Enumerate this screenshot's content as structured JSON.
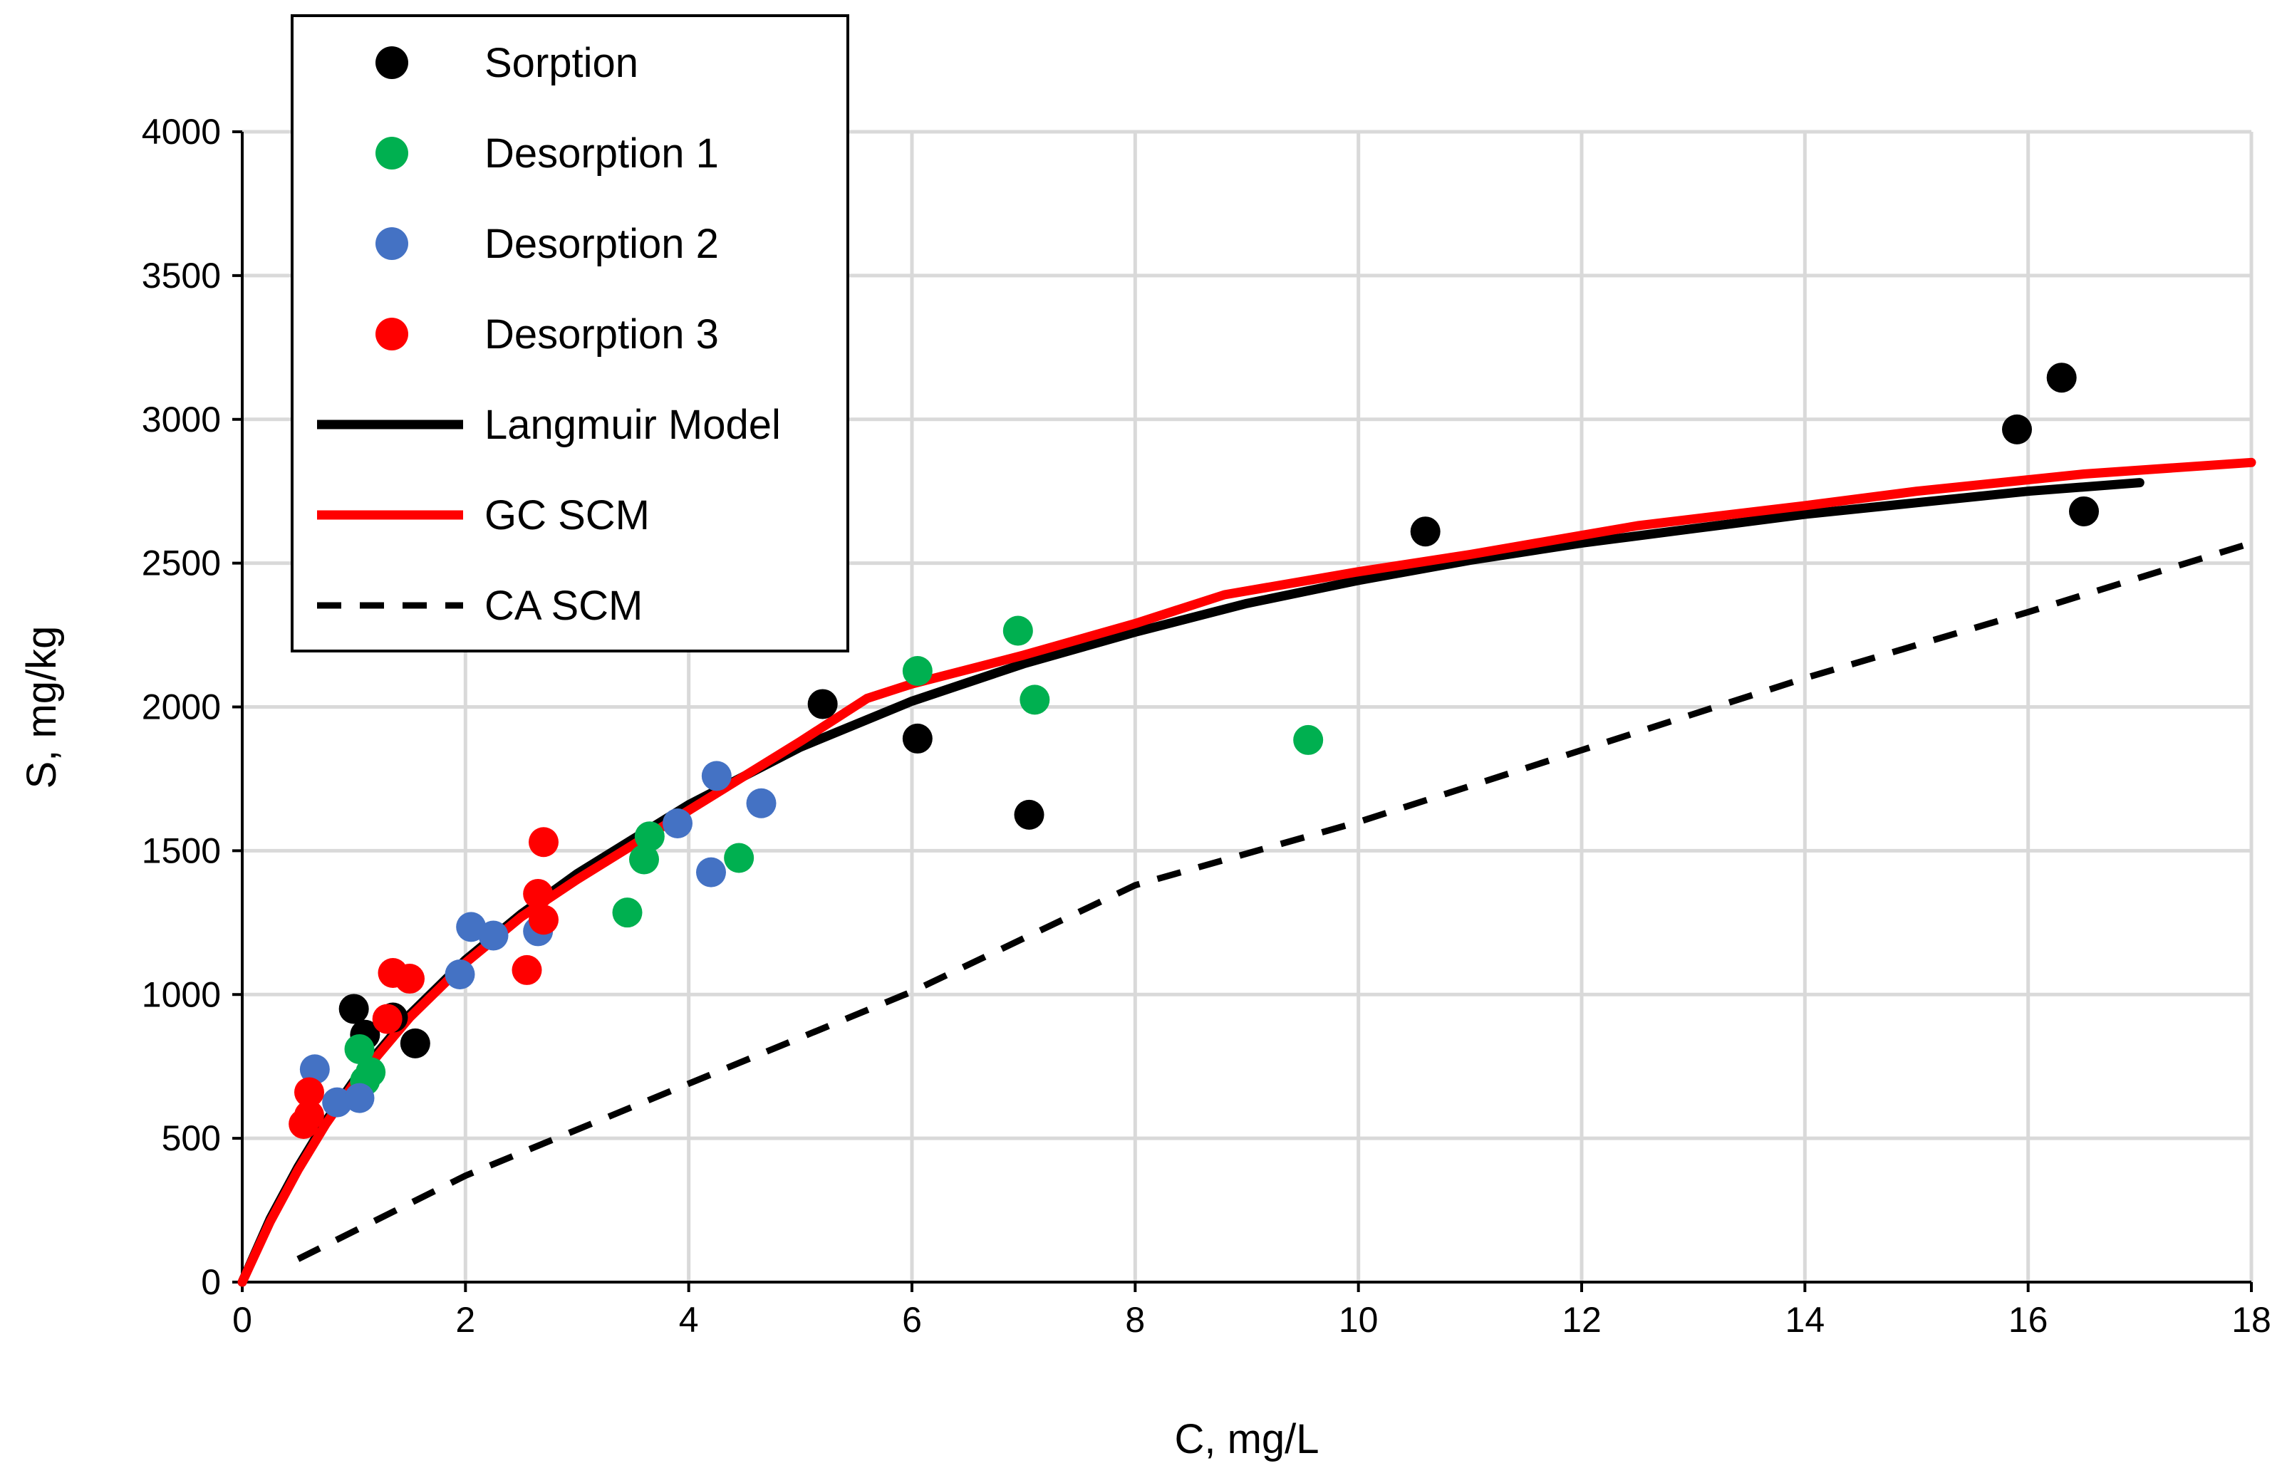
{
  "chart_data": {
    "type": "scatter",
    "title": "",
    "xlabel": "C, mg/L",
    "ylabel": "S, mg/kg",
    "xlim": [
      0,
      18
    ],
    "ylim": [
      0,
      4000
    ],
    "xticks": [
      0,
      2,
      4,
      6,
      8,
      10,
      12,
      14,
      16,
      18
    ],
    "yticks": [
      0,
      500,
      1000,
      1500,
      2000,
      2500,
      3000,
      3500,
      4000
    ],
    "grid": true,
    "legend_position": "top-left",
    "series": [
      {
        "name": "Sorption",
        "kind": "points",
        "color": "#000000",
        "points": [
          [
            1.0,
            950
          ],
          [
            1.1,
            860
          ],
          [
            1.35,
            920
          ],
          [
            1.55,
            830
          ],
          [
            5.2,
            2010
          ],
          [
            6.05,
            1890
          ],
          [
            7.05,
            1625
          ],
          [
            10.6,
            2610
          ],
          [
            15.9,
            2965
          ],
          [
            16.3,
            3145
          ],
          [
            16.5,
            2680
          ]
        ]
      },
      {
        "name": "Desorption 1",
        "kind": "points",
        "color": "#00b050",
        "points": [
          [
            1.05,
            810
          ],
          [
            1.15,
            730
          ],
          [
            1.1,
            700
          ],
          [
            3.45,
            1285
          ],
          [
            3.6,
            1470
          ],
          [
            3.65,
            1550
          ],
          [
            4.45,
            1475
          ],
          [
            6.05,
            2125
          ],
          [
            6.95,
            2265
          ],
          [
            7.1,
            2025
          ],
          [
            9.55,
            1885
          ]
        ]
      },
      {
        "name": "Desorption 2",
        "kind": "points",
        "color": "#4472c4",
        "points": [
          [
            0.65,
            740
          ],
          [
            0.85,
            625
          ],
          [
            1.05,
            640
          ],
          [
            1.95,
            1070
          ],
          [
            2.05,
            1235
          ],
          [
            2.25,
            1205
          ],
          [
            2.65,
            1220
          ],
          [
            3.9,
            1595
          ],
          [
            4.2,
            1425
          ],
          [
            4.25,
            1760
          ],
          [
            4.65,
            1665
          ]
        ]
      },
      {
        "name": "Desorption 3",
        "kind": "points",
        "color": "#ff0000",
        "points": [
          [
            0.55,
            550
          ],
          [
            0.6,
            580
          ],
          [
            0.6,
            660
          ],
          [
            1.3,
            915
          ],
          [
            1.35,
            1075
          ],
          [
            1.5,
            1055
          ],
          [
            2.55,
            1085
          ],
          [
            2.65,
            1350
          ],
          [
            2.7,
            1260
          ],
          [
            2.7,
            1530
          ]
        ]
      },
      {
        "name": "Langmuir Model",
        "kind": "line",
        "color": "#000000",
        "dash": "solid",
        "points": [
          [
            0,
            0
          ],
          [
            0.25,
            220
          ],
          [
            0.5,
            400
          ],
          [
            0.75,
            560
          ],
          [
            1.0,
            700
          ],
          [
            1.5,
            930
          ],
          [
            2.0,
            1120
          ],
          [
            2.5,
            1280
          ],
          [
            3.0,
            1420
          ],
          [
            3.5,
            1540
          ],
          [
            4.0,
            1660
          ],
          [
            5.0,
            1860
          ],
          [
            6.0,
            2020
          ],
          [
            7.0,
            2150
          ],
          [
            8.0,
            2260
          ],
          [
            9.0,
            2360
          ],
          [
            10.0,
            2440
          ],
          [
            11.0,
            2510
          ],
          [
            12.0,
            2570
          ],
          [
            13.0,
            2620
          ],
          [
            14.0,
            2670
          ],
          [
            15.0,
            2710
          ],
          [
            16.0,
            2750
          ],
          [
            17.0,
            2780
          ]
        ]
      },
      {
        "name": "GC SCM",
        "kind": "line",
        "color": "#ff0000",
        "dash": "solid",
        "points": [
          [
            0,
            0
          ],
          [
            0.25,
            210
          ],
          [
            0.5,
            390
          ],
          [
            0.75,
            550
          ],
          [
            1.0,
            690
          ],
          [
            1.5,
            920
          ],
          [
            2.0,
            1110
          ],
          [
            2.5,
            1270
          ],
          [
            3.0,
            1400
          ],
          [
            3.5,
            1520
          ],
          [
            4.0,
            1640
          ],
          [
            4.5,
            1760
          ],
          [
            5.0,
            1880
          ],
          [
            5.6,
            2030
          ],
          [
            6.0,
            2080
          ],
          [
            7.0,
            2180
          ],
          [
            8.0,
            2290
          ],
          [
            8.8,
            2390
          ],
          [
            10.0,
            2470
          ],
          [
            11.0,
            2530
          ],
          [
            12.5,
            2630
          ],
          [
            14.0,
            2700
          ],
          [
            15.0,
            2750
          ],
          [
            16.5,
            2810
          ],
          [
            18.0,
            2850
          ]
        ]
      },
      {
        "name": "CA SCM",
        "kind": "line",
        "color": "#000000",
        "dash": "dashed",
        "points": [
          [
            0.5,
            80
          ],
          [
            2.0,
            370
          ],
          [
            4.0,
            690
          ],
          [
            6.0,
            1010
          ],
          [
            8.0,
            1380
          ],
          [
            10.0,
            1600
          ],
          [
            12.0,
            1850
          ],
          [
            14.0,
            2100
          ],
          [
            16.0,
            2330
          ],
          [
            18.0,
            2570
          ]
        ]
      }
    ]
  }
}
